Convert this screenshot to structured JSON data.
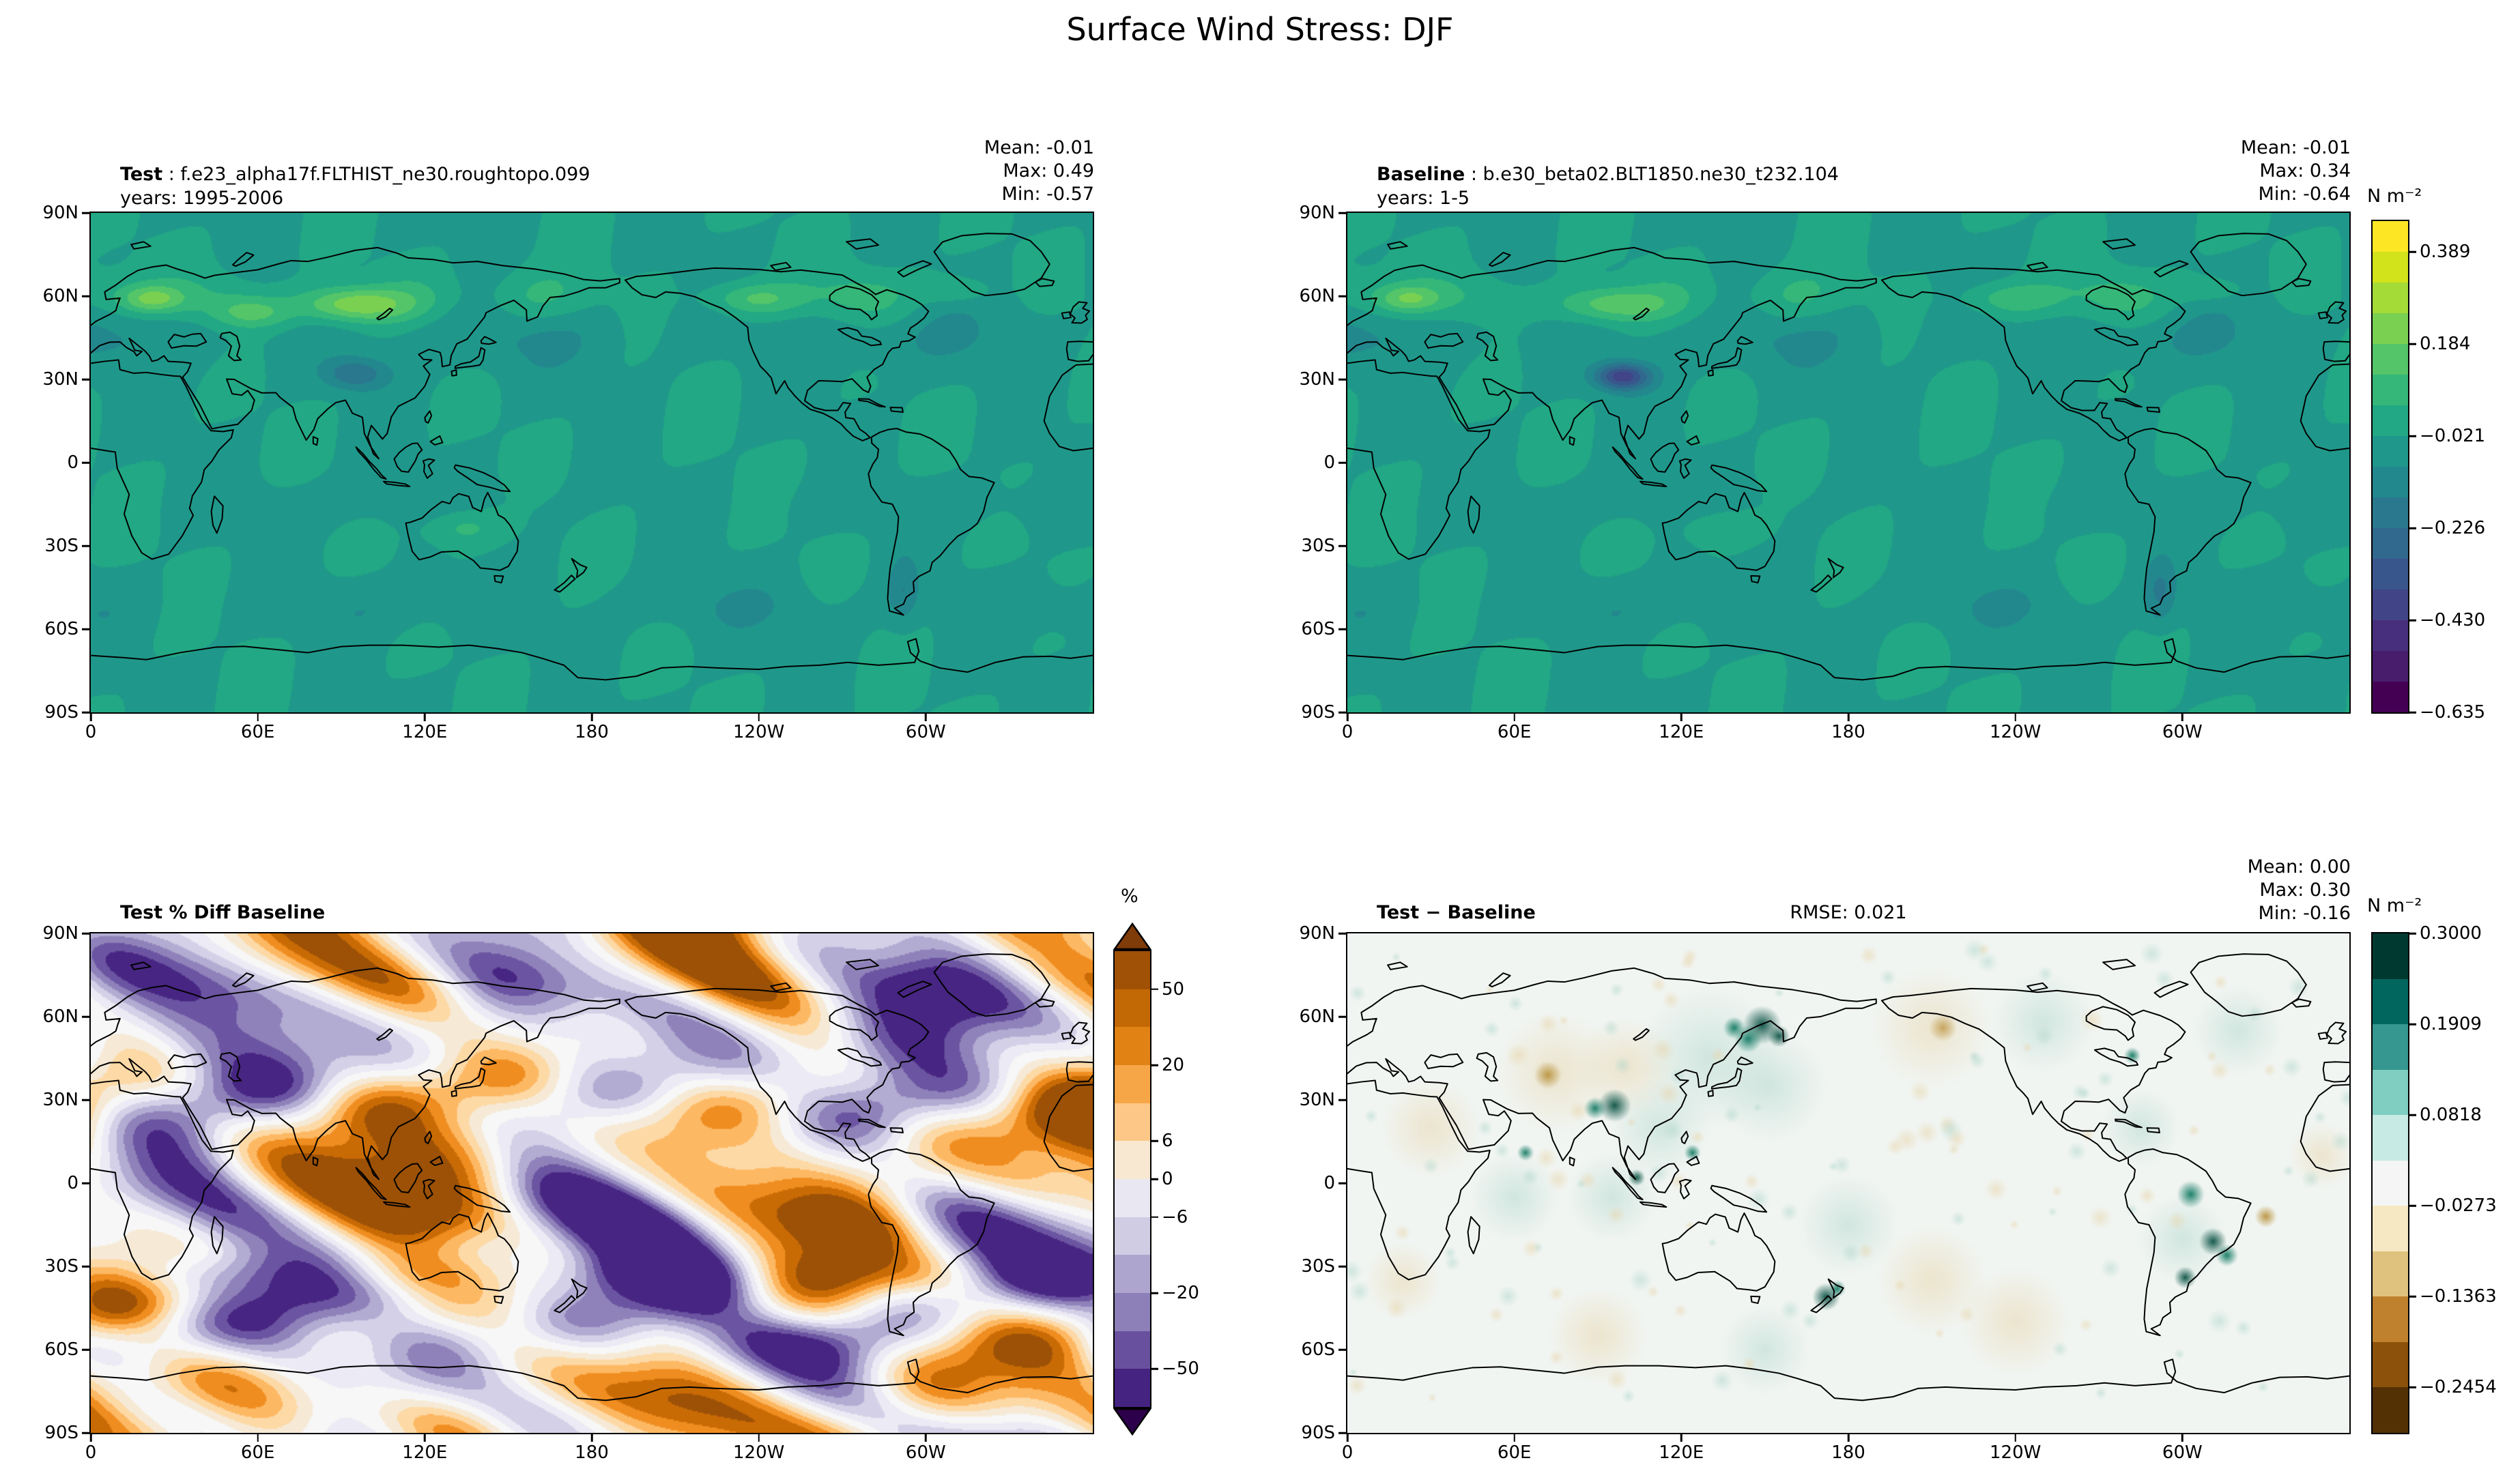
{
  "figure": {
    "title": "Surface Wind Stress: DJF"
  },
  "axes": {
    "lat_ticks": [
      "90N",
      "60N",
      "30N",
      "0",
      "30S",
      "60S",
      "90S"
    ],
    "lon_ticks": [
      "0",
      "60E",
      "120E",
      "180",
      "120W",
      "60W"
    ]
  },
  "panels": {
    "test": {
      "label_bold": "Test",
      "label_sep": " : ",
      "name": "f.e23_alpha17f.FLTHIST_ne30.roughtopo.099",
      "years": "years: 1995-2006",
      "stats": [
        "Mean: -0.01",
        "Max: 0.49",
        "Min: -0.57"
      ]
    },
    "baseline": {
      "label_bold": "Baseline",
      "label_sep": " : ",
      "name": "b.e30_beta02.BLT1850.ne30_t232.104",
      "years": "years: 1-5",
      "stats": [
        "Mean: -0.01",
        "Max: 0.34",
        "Min: -0.64"
      ]
    },
    "pct_diff": {
      "title": "Test % Diff Baseline"
    },
    "diff": {
      "title": "Test − Baseline",
      "rmse": "RMSE: 0.021",
      "stats": [
        "Mean: 0.00",
        "Max: 0.30",
        "Min: -0.16"
      ]
    }
  },
  "colorbars": {
    "wind": {
      "unit": "N m⁻²",
      "ticks": [
        "0.389",
        "0.184",
        "−0.021",
        "−0.226",
        "−0.430",
        "−0.635"
      ],
      "colors": [
        "#fde725",
        "#d2e21b",
        "#a5db36",
        "#7ad151",
        "#54c568",
        "#35b779",
        "#22a884",
        "#1f988b",
        "#23888e",
        "#2a788e",
        "#31688e",
        "#39568c",
        "#414487",
        "#472f7d",
        "#471d6c",
        "#440154"
      ]
    },
    "pct": {
      "unit": "%",
      "ticks": [
        "50",
        "20",
        "6",
        "0",
        "−6",
        "−20",
        "−50"
      ],
      "colors": [
        "#a05106",
        "#c26804",
        "#e08214",
        "#f7a647",
        "#fdc887",
        "#f9e8d1",
        "#e9e7f2",
        "#cfcce4",
        "#aea5cf",
        "#8d7fb8",
        "#68509e",
        "#452380"
      ],
      "arrow_top": "#7f3b08",
      "arrow_bottom": "#2d004b"
    },
    "diff": {
      "unit": "N m⁻²",
      "ticks": [
        "0.3000",
        "0.1909",
        "0.0818",
        "−0.0273",
        "−0.1363",
        "−0.2454"
      ],
      "colors": [
        "#00392f",
        "#01665e",
        "#35978f",
        "#80cdc1",
        "#c7eae5",
        "#f5f5f5",
        "#f6e8c3",
        "#dfc27d",
        "#bf812d",
        "#8c510a",
        "#543005"
      ]
    }
  },
  "chart_data": {
    "type": "heatmap",
    "subtype": "global_map_contour_grid",
    "figure_title": "Surface Wind Stress: DJF",
    "projection": "equirectangular 0-360E, 90S-90N",
    "lon_ticks": [
      "0",
      "60E",
      "120E",
      "180",
      "120W",
      "60W"
    ],
    "lat_ticks": [
      "90N",
      "60N",
      "30N",
      "0",
      "30S",
      "60S",
      "90S"
    ],
    "panels": [
      {
        "position": "top-left",
        "title": "Test : f.e23_alpha17f.FLTHIST_ne30.roughtopo.099",
        "years": "1995-2006",
        "units": "N m⁻²",
        "colormap": "viridis",
        "stats": {
          "mean": -0.01,
          "max": 0.49,
          "min": -0.57
        },
        "colorbar_levels": [
          -0.635,
          -0.43,
          -0.226,
          -0.021,
          0.184,
          0.389
        ]
      },
      {
        "position": "top-right",
        "title": "Baseline : b.e30_beta02.BLT1850.ne30_t232.104",
        "years": "1-5",
        "units": "N m⁻²",
        "colormap": "viridis",
        "stats": {
          "mean": -0.01,
          "max": 0.34,
          "min": -0.64
        },
        "colorbar_levels": [
          -0.635,
          -0.43,
          -0.226,
          -0.021,
          0.184,
          0.389
        ]
      },
      {
        "position": "bottom-left",
        "title": "Test % Diff Baseline",
        "units": "%",
        "colormap": "PuOr_r",
        "colorbar_levels": [
          -50,
          -20,
          -6,
          0,
          6,
          20,
          50
        ],
        "colorbar_extend": "both"
      },
      {
        "position": "bottom-right",
        "title": "Test − Baseline",
        "units": "N m⁻²",
        "colormap": "BrBG",
        "rmse": 0.021,
        "stats": {
          "mean": 0.0,
          "max": 0.3,
          "min": -0.16
        },
        "colorbar_levels": [
          -0.2454,
          -0.1363,
          -0.0273,
          0.0818,
          0.1909,
          0.3
        ]
      }
    ]
  }
}
